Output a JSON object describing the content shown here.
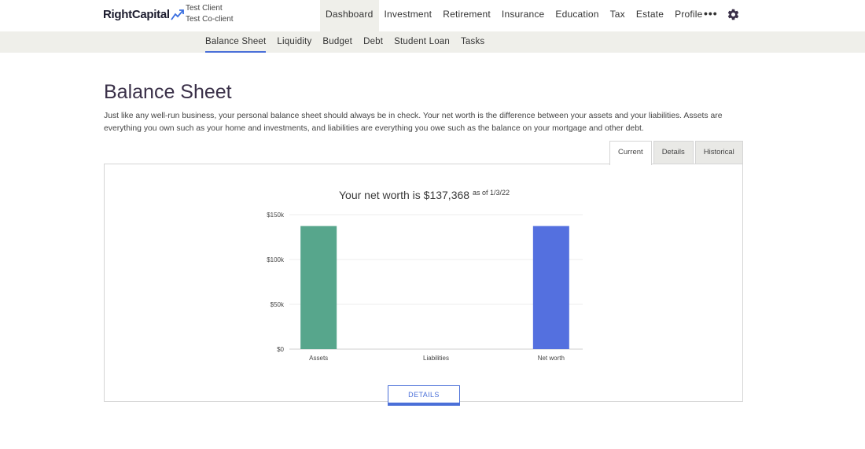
{
  "header": {
    "logo_text": "RightCapital",
    "client_primary": "Test Client",
    "client_secondary": "Test Co-client",
    "nav": [
      {
        "label": "Dashboard",
        "active": true
      },
      {
        "label": "Investment"
      },
      {
        "label": "Retirement"
      },
      {
        "label": "Insurance"
      },
      {
        "label": "Education"
      },
      {
        "label": "Tax"
      },
      {
        "label": "Estate"
      },
      {
        "label": "Profile"
      }
    ],
    "more_label": "•••"
  },
  "subnav": [
    {
      "label": "Balance Sheet",
      "active": true
    },
    {
      "label": "Liquidity"
    },
    {
      "label": "Budget"
    },
    {
      "label": "Debt"
    },
    {
      "label": "Student Loan"
    },
    {
      "label": "Tasks"
    }
  ],
  "page": {
    "title": "Balance Sheet",
    "description": "Just like any well-run business, your personal balance sheet should always be in check. Your net worth is the difference between your assets and your liabilities. Assets are everything you own such as your home and investments, and liabilities are everything you owe such as the balance on your mortgage and other debt."
  },
  "tabs": [
    {
      "label": "Current",
      "active": true
    },
    {
      "label": "Details"
    },
    {
      "label": "Historical"
    }
  ],
  "summary": {
    "prefix": "Your net worth is ",
    "net_worth": "$137,368",
    "as_of": "as of 1/3/22"
  },
  "details_button": "DETAILS",
  "colors": {
    "assets": "#57a68c",
    "net_worth": "#5470df",
    "accent": "#4a6fd8"
  },
  "chart_data": {
    "type": "bar",
    "categories": [
      "Assets",
      "Liabilities",
      "Net worth"
    ],
    "values": [
      137368,
      0,
      137368
    ],
    "ylim": [
      0,
      150000
    ],
    "yticks": [
      0,
      50000,
      100000,
      150000
    ],
    "ytick_labels": [
      "$0",
      "$50k",
      "$100k",
      "$150k"
    ],
    "grid": true
  }
}
